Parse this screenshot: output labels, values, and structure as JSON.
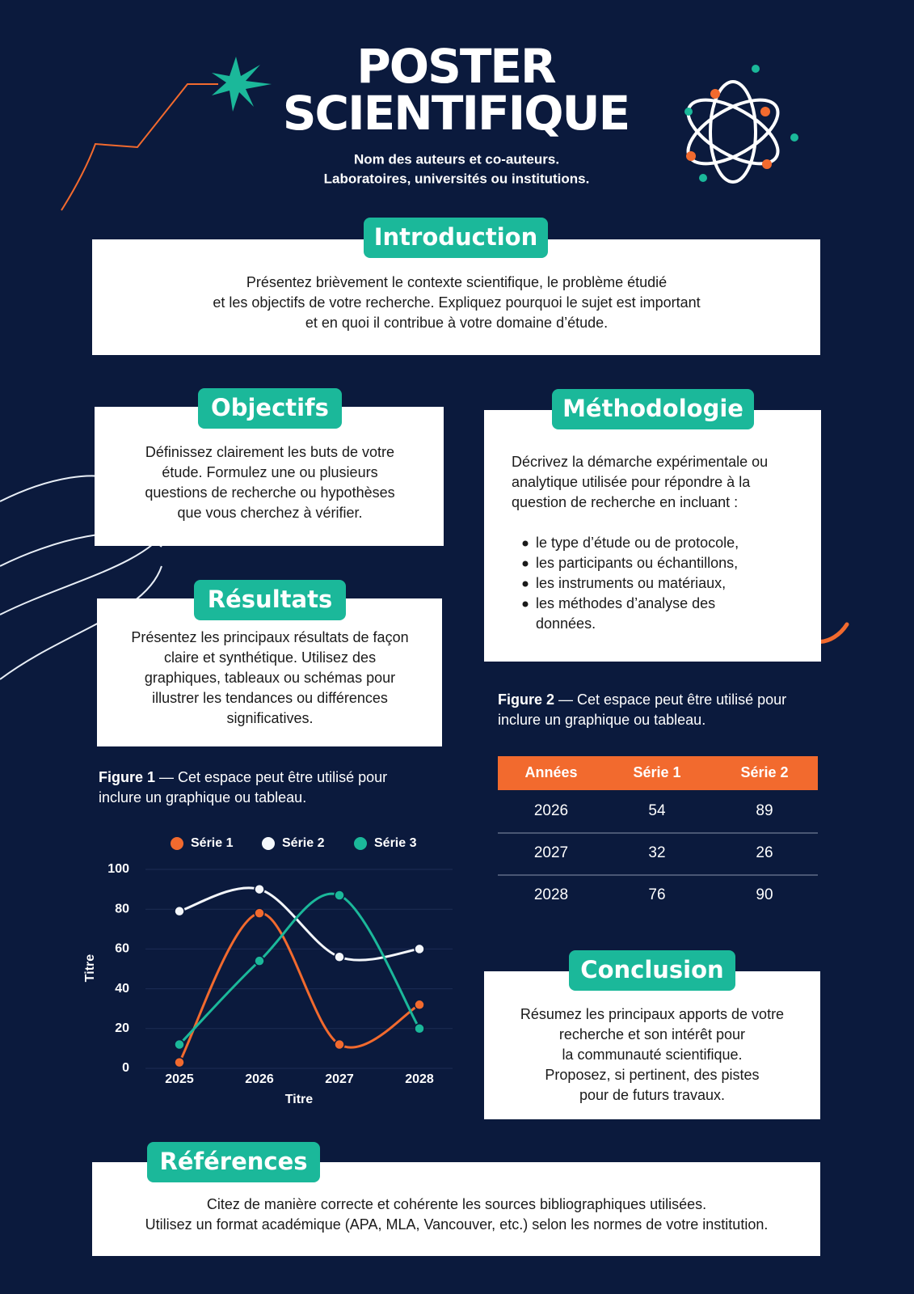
{
  "header": {
    "title_lines": [
      "POSTER",
      "SCIENTIFIQUE"
    ],
    "authors": [
      "Nom des auteurs et co-auteurs.",
      "Laboratoires, universités ou institutions."
    ]
  },
  "introduction": {
    "heading": "Introduction",
    "lines": [
      "Présentez brièvement le contexte scientifique, le problème étudié",
      "et les objectifs de votre recherche. Expliquez pourquoi le sujet est important",
      "et en quoi il contribue à votre domaine d’étude."
    ]
  },
  "objectifs": {
    "heading": "Objectifs",
    "lines": [
      "Définissez clairement les buts de votre",
      "étude. Formulez une ou plusieurs",
      "questions de recherche ou hypothèses",
      "que vous cherchez à vérifier."
    ]
  },
  "methodologie": {
    "heading": "Méthodologie",
    "lines": [
      "Décrivez la démarche expérimentale ou",
      "analytique utilisée pour répondre à la",
      "question de recherche en incluant :"
    ],
    "bullets": [
      [
        "le type d’étude ou de protocole,"
      ],
      [
        "les participants ou échantillons,"
      ],
      [
        "les instruments ou matériaux,"
      ],
      [
        "les méthodes d’analyse des",
        "données."
      ]
    ]
  },
  "resultats": {
    "heading": "Résultats",
    "lines": [
      "Présentez les principaux résultats de façon",
      "claire et synthétique. Utilisez des",
      "graphiques, tableaux ou schémas pour",
      "illustrer les tendances ou différences",
      "significatives."
    ]
  },
  "figure1": {
    "label": "Figure 1",
    "lines": [
      " — Cet espace peut être utilisé pour",
      "inclure un graphique ou tableau."
    ]
  },
  "figure2": {
    "label": "Figure 2",
    "lines": [
      " — Cet espace peut être utilisé pour",
      "inclure un graphique ou tableau."
    ]
  },
  "table": {
    "headers": [
      "Années",
      "Série 1",
      "Série 2"
    ],
    "rows": [
      [
        "2026",
        54,
        89
      ],
      [
        "2027",
        32,
        26
      ],
      [
        "2028",
        76,
        90
      ]
    ]
  },
  "conclusion": {
    "heading": "Conclusion",
    "lines": [
      "Résumez les principaux apports de votre",
      "recherche et son intérêt pour",
      "la communauté scientifique.",
      "Proposez, si pertinent, des pistes",
      "pour de futurs travaux."
    ]
  },
  "references": {
    "heading": "Références",
    "lines": [
      "Citez de manière correcte et cohérente les sources bibliographiques utilisées.",
      "Utilisez un format académique (APA, MLA, Vancouver, etc.) selon les normes de votre institution."
    ]
  },
  "chart_data": {
    "type": "line",
    "x_label": "Titre",
    "y_label": "Titre",
    "categories": [
      "2025",
      "2026",
      "2027",
      "2028"
    ],
    "series": [
      {
        "name": "Série 1",
        "color": "#f26a2e",
        "values": [
          3,
          78,
          12,
          32
        ]
      },
      {
        "name": "Série 2",
        "color": "#f4f7fb",
        "values": [
          79,
          90,
          56,
          60
        ]
      },
      {
        "name": "Série 3",
        "color": "#1bb89a",
        "values": [
          12,
          54,
          87,
          20
        ]
      }
    ],
    "ylim": [
      0,
      100
    ],
    "yticks": [
      0,
      20,
      40,
      60,
      80,
      100
    ],
    "grid": true,
    "smooth": true
  }
}
